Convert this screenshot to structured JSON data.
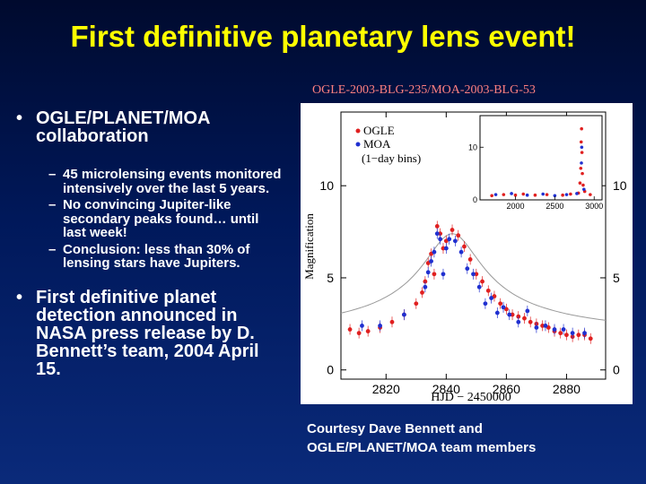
{
  "title": "First definitive planetary lens event!",
  "figure_caption": "OGLE-2003-BLG-235/MOA-2003-BLG-53",
  "bullets": {
    "b1": "OGLE/PLANET/MOA collaboration",
    "sub": [
      "45 microlensing events monitored intensively over the last 5 years.",
      "No convincing Jupiter-like secondary peaks found… until last week!",
      "Conclusion: less than 30% of lensing stars have Jupiters."
    ],
    "b2": "First definitive planet detection announced in NASA press release by D. Bennett’s team, 2004 April 15."
  },
  "credit": [
    "Courtesy Dave Bennett and",
    "OGLE/PLANET/MOA team members"
  ],
  "chart_data": [
    {
      "type": "scatter",
      "xlabel": "HJD − 2450000",
      "ylabel": "Magnification",
      "xlim": [
        2805,
        2893
      ],
      "ylim": [
        -0.5,
        14
      ],
      "xticks": [
        2820,
        2840,
        2860,
        2880
      ],
      "yticks": [
        0,
        5,
        10
      ],
      "colors": {
        "OGLE": "#e02020",
        "MOA": "#2030d0"
      },
      "series": [
        {
          "name": "OGLE",
          "points": [
            [
              2808,
              2.2
            ],
            [
              2811,
              2.0
            ],
            [
              2814,
              2.1
            ],
            [
              2818,
              2.3
            ],
            [
              2822,
              2.6
            ],
            [
              2826,
              3.0
            ],
            [
              2830,
              3.6
            ],
            [
              2832,
              4.2
            ],
            [
              2833,
              4.8
            ],
            [
              2834,
              5.8
            ],
            [
              2835,
              6.3
            ],
            [
              2836,
              5.2
            ],
            [
              2837,
              7.8
            ],
            [
              2838,
              7.4
            ],
            [
              2839,
              6.6
            ],
            [
              2840,
              7.0
            ],
            [
              2842,
              7.6
            ],
            [
              2844,
              7.3
            ],
            [
              2846,
              6.7
            ],
            [
              2848,
              6.0
            ],
            [
              2850,
              5.2
            ],
            [
              2852,
              4.8
            ],
            [
              2854,
              4.3
            ],
            [
              2856,
              4.0
            ],
            [
              2858,
              3.6
            ],
            [
              2860,
              3.3
            ],
            [
              2862,
              3.0
            ],
            [
              2864,
              2.9
            ],
            [
              2866,
              2.8
            ],
            [
              2868,
              2.6
            ],
            [
              2870,
              2.5
            ],
            [
              2872,
              2.4
            ],
            [
              2874,
              2.3
            ],
            [
              2876,
              2.1
            ],
            [
              2878,
              2.0
            ],
            [
              2880,
              1.9
            ],
            [
              2882,
              1.8
            ],
            [
              2884,
              1.9
            ],
            [
              2886,
              1.9
            ],
            [
              2888,
              1.7
            ]
          ]
        },
        {
          "name": "MOA",
          "points": [
            [
              2812,
              2.4
            ],
            [
              2818,
              2.4
            ],
            [
              2826,
              3.0
            ],
            [
              2833,
              4.5
            ],
            [
              2834,
              5.3
            ],
            [
              2835,
              5.9
            ],
            [
              2836,
              6.4
            ],
            [
              2837,
              7.4
            ],
            [
              2838,
              7.1
            ],
            [
              2839,
              5.2
            ],
            [
              2840,
              6.6
            ],
            [
              2841,
              7.1
            ],
            [
              2843,
              7.0
            ],
            [
              2845,
              6.4
            ],
            [
              2847,
              5.5
            ],
            [
              2849,
              5.2
            ],
            [
              2851,
              4.5
            ],
            [
              2853,
              3.6
            ],
            [
              2855,
              3.9
            ],
            [
              2857,
              3.1
            ],
            [
              2859,
              3.4
            ],
            [
              2861,
              3.0
            ],
            [
              2864,
              2.6
            ],
            [
              2867,
              3.2
            ],
            [
              2870,
              2.3
            ],
            [
              2873,
              2.4
            ],
            [
              2876,
              2.2
            ],
            [
              2879,
              2.2
            ],
            [
              2882,
              2.0
            ],
            [
              2886,
              2.0
            ]
          ]
        }
      ],
      "legend": [
        "OGLE",
        "MOA",
        "(1−day bins)"
      ]
    },
    {
      "type": "scatter",
      "xlim": [
        1550,
        3100
      ],
      "ylim": [
        0,
        16
      ],
      "xticks": [
        2000,
        2500,
        3000
      ],
      "yticks": [
        0,
        10
      ],
      "series": [
        {
          "name": "OGLE",
          "points": [
            [
              1700,
              0.8
            ],
            [
              1850,
              1.0
            ],
            [
              2000,
              0.9
            ],
            [
              2100,
              1.1
            ],
            [
              2250,
              0.9
            ],
            [
              2400,
              1.0
            ],
            [
              2600,
              0.9
            ],
            [
              2700,
              1.1
            ],
            [
              2800,
              1.3
            ],
            [
              2820,
              3.2
            ],
            [
              2830,
              6.0
            ],
            [
              2835,
              11.0
            ],
            [
              2840,
              13.5
            ],
            [
              2845,
              9.0
            ],
            [
              2850,
              5.0
            ],
            [
              2860,
              2.8
            ],
            [
              2880,
              1.6
            ],
            [
              2950,
              1.0
            ]
          ]
        },
        {
          "name": "MOA",
          "points": [
            [
              1750,
              1.0
            ],
            [
              1950,
              1.2
            ],
            [
              2150,
              0.9
            ],
            [
              2350,
              1.1
            ],
            [
              2500,
              0.8
            ],
            [
              2650,
              1.0
            ],
            [
              2780,
              1.2
            ],
            [
              2838,
              7.0
            ],
            [
              2842,
              10.0
            ],
            [
              2870,
              2.0
            ]
          ]
        }
      ]
    }
  ]
}
